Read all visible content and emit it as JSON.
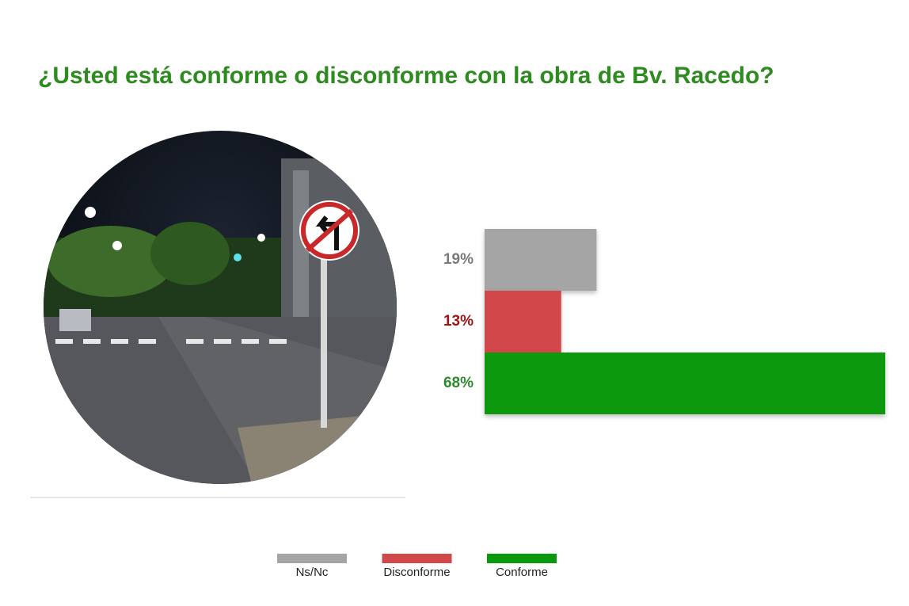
{
  "chart_data": {
    "type": "hbar",
    "title": "¿Usted está conforme o disconforme con la obra de Bv. Racedo?",
    "categories": [
      "Ns/Nc",
      "Disconforme",
      "Conforme"
    ],
    "values": [
      19,
      13,
      68
    ],
    "value_labels": [
      "19%",
      "13%",
      "68%"
    ],
    "colors": [
      "#a5a5a5",
      "#d2474a",
      "#0a990a"
    ],
    "label_colors": [
      "#7a7a7a",
      "#a01414",
      "#2f8a2f"
    ],
    "legend": "bottom"
  }
}
